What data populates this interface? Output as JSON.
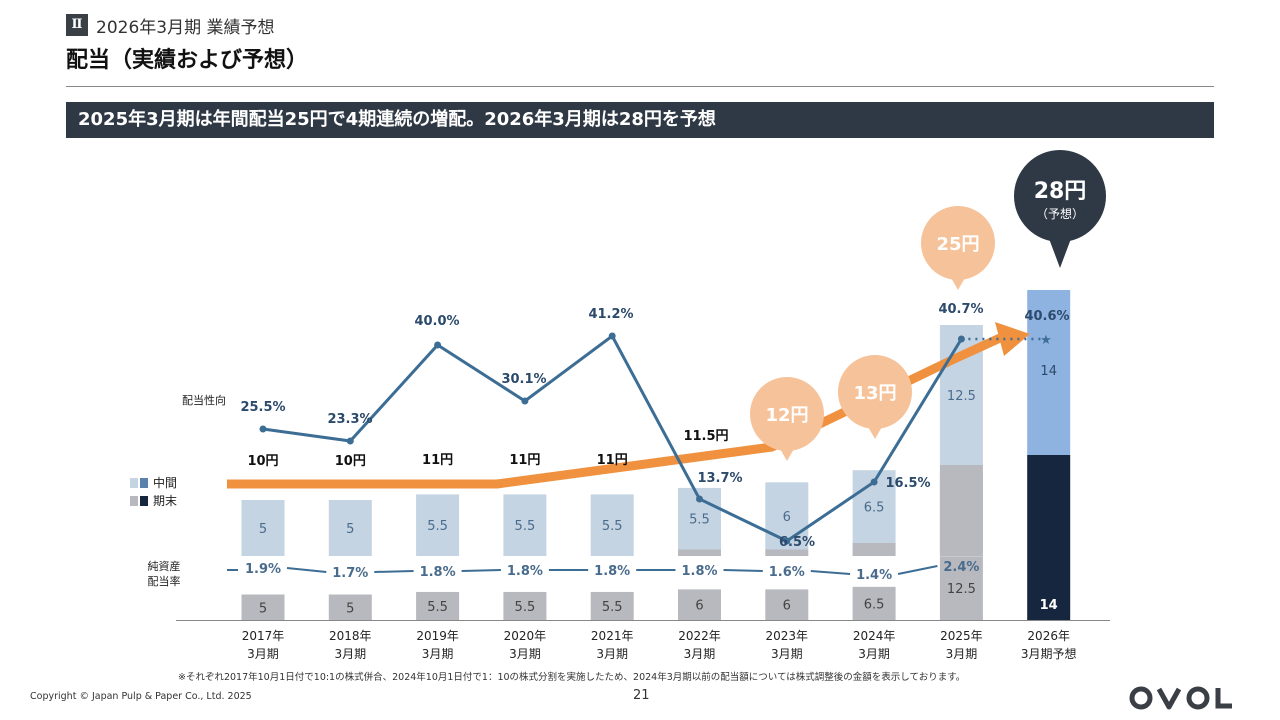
{
  "header": {
    "section_badge": "Ⅱ",
    "section_label": "2026年3月期 業績予想",
    "title": "配当（実績および予想）",
    "banner": "2025年3月期は年間配当25円で4期連続の増配。2026年3月期は28円を予想"
  },
  "chart_data": {
    "type": "bar",
    "categories": [
      "2017年\n3月期",
      "2018年\n3月期",
      "2019年\n3月期",
      "2020年\n3月期",
      "2021年\n3月期",
      "2022年\n3月期",
      "2023年\n3月期",
      "2024年\n3月期",
      "2025年\n3月期",
      "2026年\n3月期予想"
    ],
    "legend": [
      {
        "label": "中間",
        "actual_color": "#c5d4e3",
        "forecast_color": "#8fb3e0",
        "sample_color": "#5b82ad"
      },
      {
        "label": "期末",
        "actual_color": "#b7b9be",
        "forecast_color": "#17263f",
        "sample_color": "#17263f"
      }
    ],
    "interim": [
      5,
      5,
      5.5,
      5.5,
      5.5,
      5.5,
      6,
      6.5,
      12.5,
      14
    ],
    "year_end": [
      5,
      5,
      5.5,
      5.5,
      5.5,
      6,
      6,
      6.5,
      12.5,
      14
    ],
    "interim_labels": [
      "5",
      "5",
      "5.5",
      "5.5",
      "5.5",
      "5.5",
      "6",
      "6.5",
      "12.5",
      "14"
    ],
    "year_end_labels": [
      "5",
      "5",
      "5.5",
      "5.5",
      "5.5",
      "6",
      "6",
      "6.5",
      "12.5",
      "14"
    ],
    "annual_dividend_labels": [
      "10円",
      "10円",
      "11円",
      "11円",
      "11円",
      "11.5円",
      "",
      "",
      "",
      ""
    ],
    "callouts": [
      "12円",
      "13円",
      "25円"
    ],
    "forecast_callout": {
      "value": "28円",
      "note": "（予想）"
    },
    "payout_ratio": {
      "name": "配当性向",
      "values": [
        25.5,
        23.3,
        40.0,
        30.1,
        41.2,
        13.7,
        6.5,
        16.5,
        40.7,
        40.6
      ],
      "labels": [
        "25.5%",
        "23.3%",
        "40.0%",
        "30.1%",
        "41.2%",
        "13.7%",
        "6.5%",
        "16.5%",
        "40.7%",
        "40.6%"
      ]
    },
    "doe": {
      "name": "純資産\n配当率",
      "values": [
        1.9,
        1.7,
        1.8,
        1.8,
        1.8,
        1.8,
        1.6,
        1.4,
        2.4
      ],
      "labels": [
        "1.9%",
        "1.7%",
        "1.8%",
        "1.8%",
        "1.8%",
        "1.8%",
        "1.6%",
        "1.4%",
        "2.4%"
      ]
    },
    "colors": {
      "payout": "#3c6d95",
      "trend": "#f0913f",
      "callout": "#f6c29a",
      "forecast_bubble": "#2f3945",
      "label_text": "#2c4a6b"
    }
  },
  "footer": {
    "footnote": "※それぞれ2017年10月1日付で10:1の株式併合、2024年10月1日付で1：10の株式分割を実施したため、2024年3月期以前の配当額については株式調整後の金額を表示しております。",
    "copyright": "Copyright © Japan Pulp & Paper Co., Ltd. 2025",
    "page_number": "21",
    "logo_text": "OVOL"
  }
}
